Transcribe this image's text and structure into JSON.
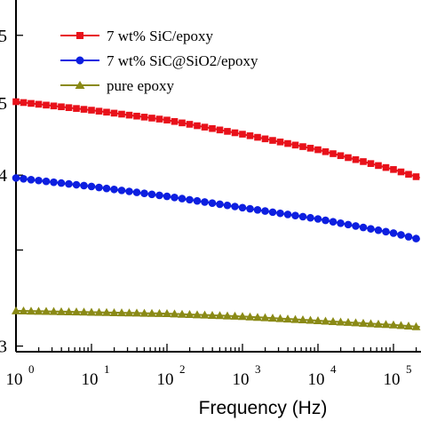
{
  "chart_data": {
    "type": "line",
    "x_scale": "log",
    "x_tick_labels": [
      "10",
      "10",
      "10",
      "10",
      "10",
      "10"
    ],
    "x_tick_exponents": [
      "0",
      "1",
      "2",
      "3",
      "4",
      "5"
    ],
    "xlim": [
      1,
      1000000
    ],
    "xlabel": "Frequency (Hz)",
    "y_tick_labels": [
      "5",
      "5",
      "4",
      "",
      "3"
    ],
    "ylabel": "",
    "legend_position": "top-left",
    "grid": false,
    "series": [
      {
        "name": "7 wt% SiC/epoxy",
        "color": "#e8111a",
        "marker": "square",
        "x": [
          1,
          10,
          100,
          1000,
          10000,
          100000,
          1000000
        ],
        "y": [
          4.73,
          4.67,
          4.6,
          4.5,
          4.39,
          4.25,
          4.08
        ]
      },
      {
        "name": "7 wt% SiC@SiO2/epoxy",
        "color": "#0d1fe0",
        "marker": "circle",
        "x": [
          1,
          10,
          100,
          1000,
          10000,
          100000,
          1000000
        ],
        "y": [
          4.19,
          4.13,
          4.06,
          3.98,
          3.9,
          3.8,
          3.67
        ]
      },
      {
        "name": "pure epoxy",
        "color": "#8a8a16",
        "marker": "triangle",
        "x": [
          1,
          10,
          100,
          1000,
          10000,
          100000,
          1000000
        ],
        "y": [
          3.25,
          3.24,
          3.23,
          3.21,
          3.18,
          3.15,
          3.11
        ]
      }
    ],
    "y_range": [
      2.96,
      5.45
    ]
  }
}
